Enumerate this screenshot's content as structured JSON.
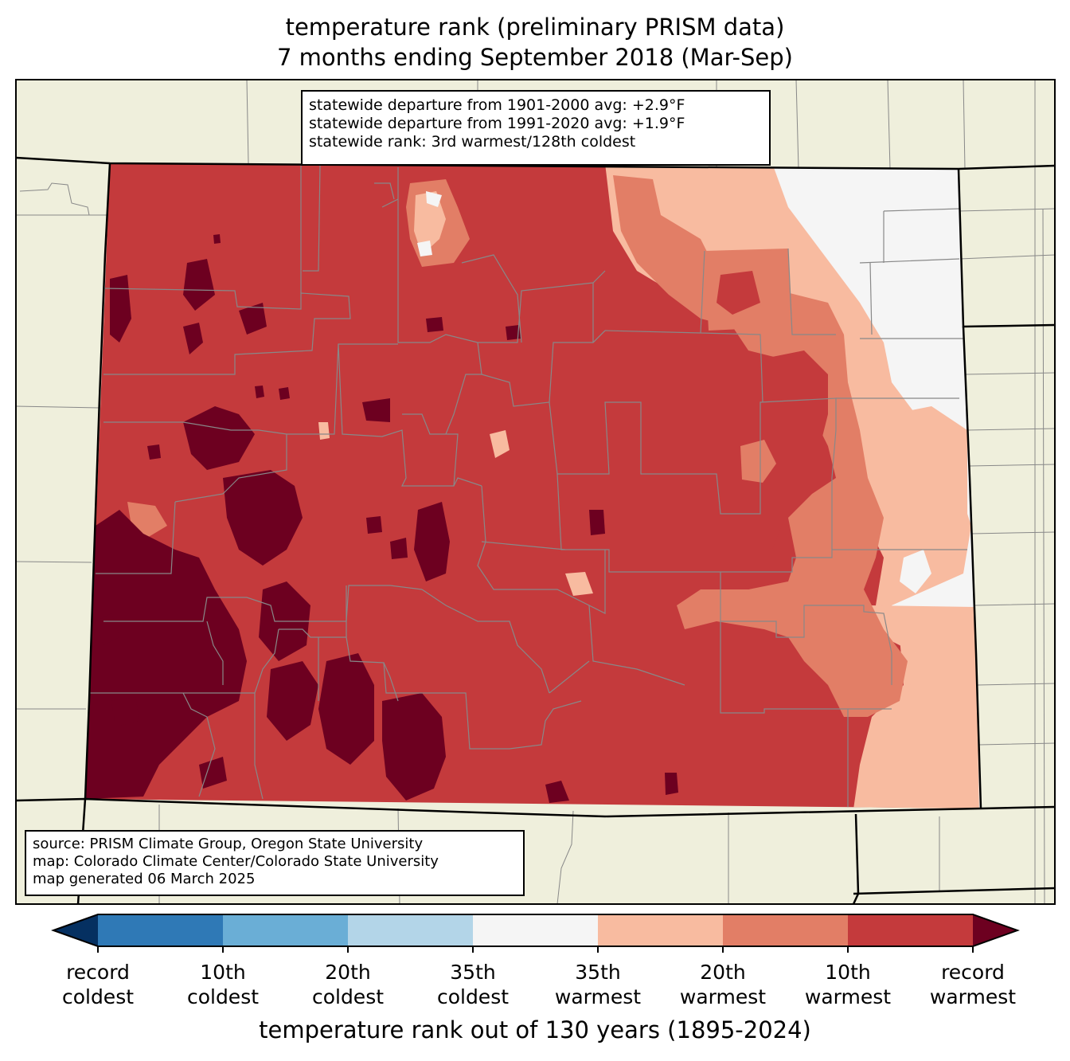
{
  "title": {
    "line1": "temperature rank (preliminary PRISM data)",
    "line2": "7 months ending September 2018 (Mar-Sep)"
  },
  "stats": {
    "line1": "statewide departure from 1901-2000 avg: +2.9°F",
    "line2": "statewide departure from 1991-2020 avg: +1.9°F",
    "line3": "statewide rank: 3rd warmest/128th coldest"
  },
  "source": {
    "line1": "source: PRISM Climate Group, Oregon State University",
    "line2": "map: Colorado Climate Center/Colorado State University",
    "line3": "map generated 06 March 2025"
  },
  "colorbar": {
    "title": "temperature rank out of 130 years (1895-2024)",
    "ticks": [
      {
        "line1": "record",
        "line2": "coldest"
      },
      {
        "line1": "10th",
        "line2": "coldest"
      },
      {
        "line1": "20th",
        "line2": "coldest"
      },
      {
        "line1": "35th",
        "line2": "coldest"
      },
      {
        "line1": "35th",
        "line2": "warmest"
      },
      {
        "line1": "20th",
        "line2": "warmest"
      },
      {
        "line1": "10th",
        "line2": "warmest"
      },
      {
        "line1": "record",
        "line2": "warmest"
      }
    ],
    "colors": {
      "record_coldest": "#053061",
      "coldest_10": "#2f79b6",
      "coldest_20": "#6aaed6",
      "coldest_35": "#b3d5e8",
      "normal": "#f5f5f5",
      "warmest_35": "#f8bba0",
      "warmest_20": "#e27e66",
      "warmest_10": "#c43a3c",
      "record_warmest": "#6d0020"
    }
  },
  "map_colors": {
    "land": "#efefdc",
    "state_border": "#000000",
    "county_border": "#888888"
  }
}
